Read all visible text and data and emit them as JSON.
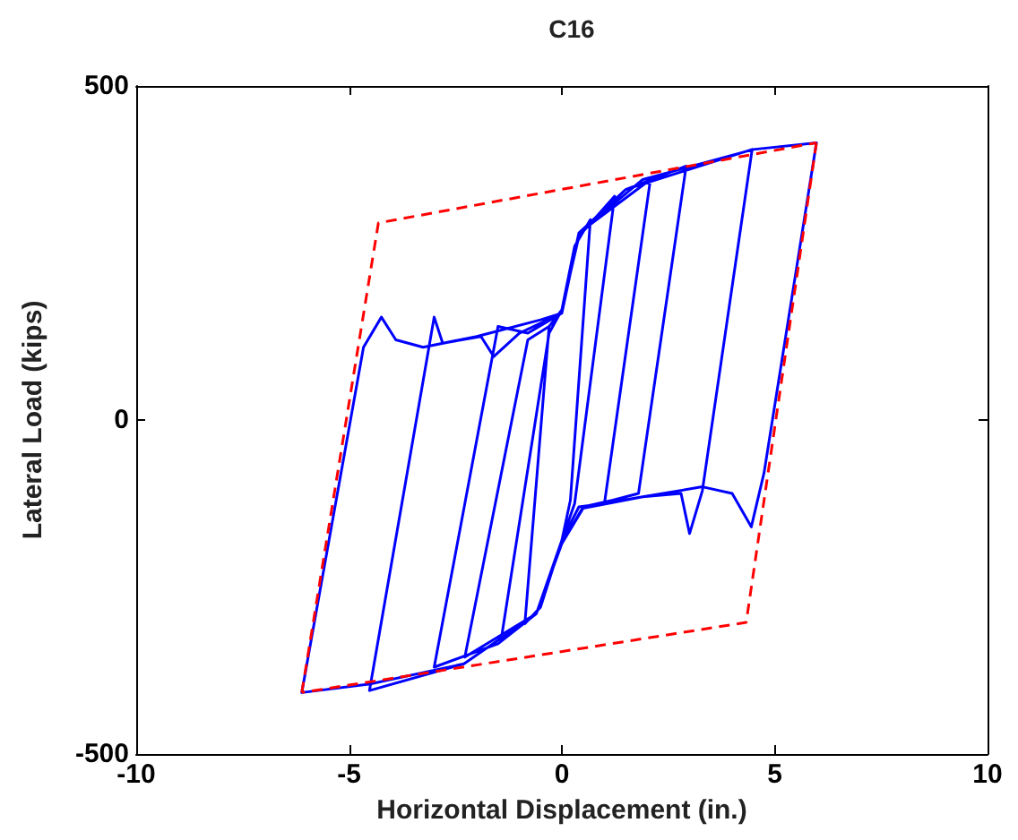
{
  "chart_data": {
    "type": "line",
    "title": "C16",
    "xlabel": "Horizontal Displacement (in.)",
    "ylabel": "Lateral Load (kips)",
    "xlim": [
      -10,
      10
    ],
    "xticks": [
      -10,
      -5,
      0,
      5,
      10
    ],
    "ylim": [
      -500,
      500
    ],
    "yticks": [
      -500,
      0,
      500
    ],
    "grid": false,
    "marker": "none",
    "series": [
      {
        "color": "#0000ff",
        "line_style": "solid",
        "x": [
          0,
          0.3,
          0.67,
          0.2,
          0,
          -0.5,
          -0.87,
          -0.3,
          0,
          0.4,
          1.24,
          0.3,
          0,
          -0.6,
          -1.43,
          -0.3,
          0,
          0.4,
          2.08,
          1.0,
          0.4,
          0,
          -0.6,
          -2.28,
          -0.8,
          -0.3,
          0,
          0.4,
          1.5,
          2.92,
          1.8,
          1.2,
          0.5,
          0,
          -0.6,
          -1.5,
          -3.0,
          -1.5,
          -0.8,
          0,
          0.4,
          1.5,
          4.47,
          3.3,
          3.0,
          2.8,
          1.9,
          0.5,
          0,
          -0.6,
          -2.3,
          -4.52,
          -3.0,
          -2.8,
          -1.9,
          -1.6,
          -1.0,
          0,
          0.4,
          1.9,
          4.5,
          5.98,
          4.75,
          4.45,
          4.0,
          3.3,
          1.9,
          0.5,
          0,
          -0.6,
          -2.3,
          -4.5,
          -6.11,
          -4.66,
          -4.24,
          -3.9,
          -3.26,
          -2,
          -0.5,
          0
        ],
        "values": [
          165,
          260,
          300,
          -120,
          -180,
          -280,
          -305,
          140,
          165,
          275,
          335,
          -125,
          -180,
          -290,
          -330,
          130,
          165,
          280,
          360,
          -125,
          -130,
          -180,
          -290,
          -355,
          120,
          140,
          165,
          280,
          345,
          380,
          -110,
          -120,
          -130,
          -185,
          -290,
          -335,
          -370,
          140,
          130,
          160,
          280,
          345,
          405,
          -106,
          -170,
          -110,
          -115,
          -132,
          -185,
          -290,
          -365,
          -405,
          154,
          115,
          125,
          95,
          130,
          160,
          280,
          360,
          405,
          415,
          -79,
          -160,
          -110,
          -100,
          -115,
          -130,
          -185,
          -290,
          -365,
          -395,
          -408,
          109,
          154,
          120,
          109,
          125,
          150,
          160
        ]
      },
      {
        "color": "#ff0000",
        "line_style": "dashed",
        "x": [
          -6.11,
          -4.31,
          5.98
        ],
        "values": [
          -408,
          295,
          415
        ]
      },
      {
        "color": "#ff0000",
        "line_style": "dashed",
        "x": [
          5.98,
          4.33,
          -6.11
        ],
        "values": [
          415,
          -303,
          -408
        ]
      }
    ]
  }
}
